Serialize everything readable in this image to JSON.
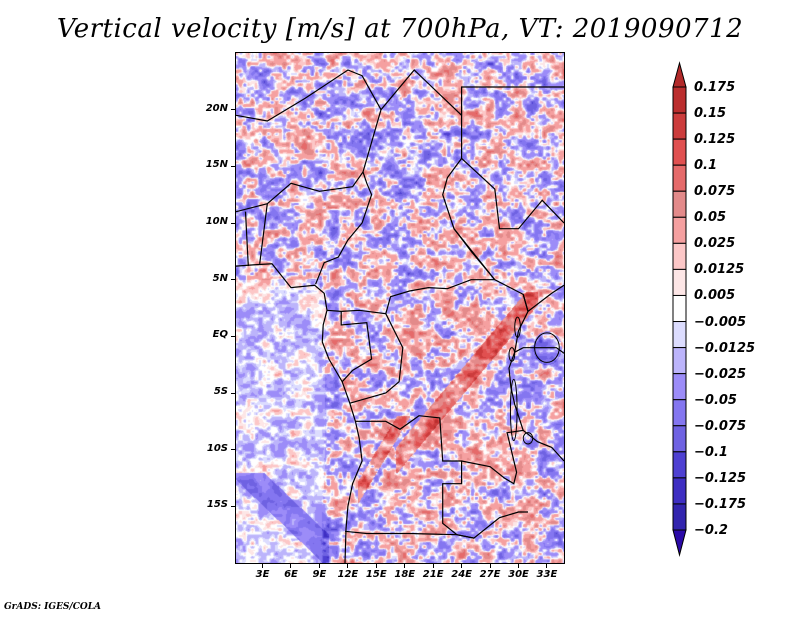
{
  "chart_data": {
    "type": "heatmap",
    "title": "Vertical velocity [m/s] at 700hPa, VT: 2019090712",
    "variable": "Vertical velocity",
    "units": "m/s",
    "level": "700hPa",
    "valid_time": "2019090712",
    "xlabel": "",
    "ylabel": "",
    "x_range_deg": [
      0.2,
      34.8
    ],
    "y_range_deg": [
      -20,
      25
    ],
    "x_ticks": [
      {
        "value": 3,
        "label": "3E"
      },
      {
        "value": 6,
        "label": "6E"
      },
      {
        "value": 9,
        "label": "9E"
      },
      {
        "value": 12,
        "label": "12E"
      },
      {
        "value": 15,
        "label": "15E"
      },
      {
        "value": 18,
        "label": "18E"
      },
      {
        "value": 21,
        "label": "21E"
      },
      {
        "value": 24,
        "label": "24E"
      },
      {
        "value": 27,
        "label": "27E"
      },
      {
        "value": 30,
        "label": "30E"
      },
      {
        "value": 33,
        "label": "33E"
      }
    ],
    "y_ticks": [
      {
        "value": 20,
        "label": "20N"
      },
      {
        "value": 15,
        "label": "15N"
      },
      {
        "value": 10,
        "label": "10N"
      },
      {
        "value": 5,
        "label": "5N"
      },
      {
        "value": 0,
        "label": "EQ"
      },
      {
        "value": -5,
        "label": "5S"
      },
      {
        "value": -10,
        "label": "10S"
      },
      {
        "value": -15,
        "label": "15S"
      }
    ],
    "grid": false,
    "legend": {
      "type": "colorbar",
      "placement": "right",
      "levels": [
        0.175,
        0.15,
        0.125,
        0.1,
        0.075,
        0.05,
        0.025,
        0.0125,
        0.005,
        -0.005,
        -0.0125,
        -0.025,
        -0.05,
        -0.075,
        -0.1,
        -0.125,
        -0.175,
        -0.2
      ],
      "level_labels": [
        "0.175",
        "0.15",
        "0.125",
        "0.1",
        "0.075",
        "0.05",
        "0.025",
        "0.0125",
        "0.005",
        "−0.005",
        "−0.0125",
        "−0.025",
        "−0.05",
        "−0.075",
        "−0.1",
        "−0.125",
        "−0.175",
        "−0.2"
      ],
      "colors_top_to_bottom": [
        "#b22a2a",
        "#bb2e2e",
        "#cc3c3c",
        "#e05050",
        "#e56a6a",
        "#e38a8a",
        "#f5a0a0",
        "#fcc7c7",
        "#fde6e6",
        "#ffffff",
        "#dcdcfe",
        "#bcb4fb",
        "#9c8cf8",
        "#8476f0",
        "#6f62e2",
        "#4e40d2",
        "#3e2ec2",
        "#3224ae",
        "#2b0aa8"
      ],
      "extend": "both"
    },
    "field_description": "Noisy mesoscale field; strong positive (red) bands along East African rift / Albertine region and Angolan highlands, broad negative (blue) over Gulf of Guinea ocean south of equator and Sahel; mixed pattern elsewhere."
  },
  "footer": "GrADS: IGES/COLA"
}
